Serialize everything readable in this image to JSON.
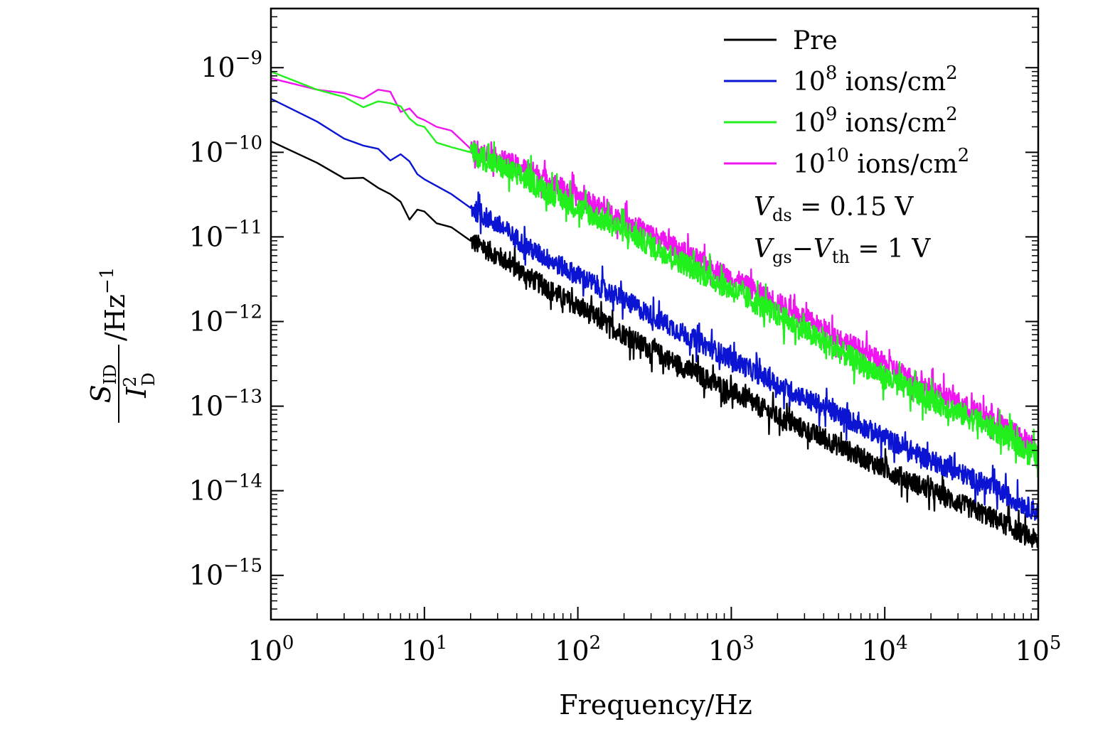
{
  "chart_data": {
    "type": "line",
    "xlabel": "Frequency/Hz",
    "ylabel": {
      "numerator_symbol": "S",
      "numerator_subscript": "ID",
      "denominator_symbol": "I",
      "denominator_superscript": "2",
      "denominator_subscript": "D",
      "unit": "/Hz",
      "unit_exponent": "−1"
    },
    "x_scale": "log",
    "y_scale": "log",
    "xlim": [
      1,
      100000
    ],
    "ylim": [
      3e-16,
      5e-09
    ],
    "x_ticks": [
      {
        "base": "10",
        "exp": "0",
        "value": 1
      },
      {
        "base": "10",
        "exp": "1",
        "value": 10
      },
      {
        "base": "10",
        "exp": "2",
        "value": 100
      },
      {
        "base": "10",
        "exp": "3",
        "value": 1000
      },
      {
        "base": "10",
        "exp": "4",
        "value": 10000
      },
      {
        "base": "10",
        "exp": "5",
        "value": 100000
      }
    ],
    "y_ticks": [
      {
        "base": "10",
        "exp": "−9",
        "value": 1e-09
      },
      {
        "base": "10",
        "exp": "−10",
        "value": 1e-10
      },
      {
        "base": "10",
        "exp": "−11",
        "value": 1e-11
      },
      {
        "base": "10",
        "exp": "−12",
        "value": 1e-12
      },
      {
        "base": "10",
        "exp": "−13",
        "value": 1e-13
      },
      {
        "base": "10",
        "exp": "−14",
        "value": 1e-14
      },
      {
        "base": "10",
        "exp": "−15",
        "value": 1e-15
      }
    ],
    "legend_position": "top-right",
    "series": [
      {
        "name": "Pre",
        "legend_base": "Pre",
        "legend_exp": "",
        "legend_rest": "",
        "color": "#000000",
        "x": [
          1,
          2,
          3,
          4,
          5,
          6,
          7,
          8,
          9,
          10,
          12,
          15,
          20,
          30,
          50,
          100,
          200,
          500,
          1000,
          2000,
          5000,
          10000,
          20000,
          50000,
          100000
        ],
        "y": [
          1.35e-10,
          7.5e-11,
          4.9e-11,
          5e-11,
          3.8e-11,
          3.2e-11,
          2.6e-11,
          1.6e-11,
          2.1e-11,
          2e-11,
          1.45e-11,
          1.3e-11,
          9e-12,
          6e-12,
          3.2e-12,
          1.5e-12,
          7e-13,
          2.8e-13,
          1.5e-13,
          7.5e-14,
          3.4e-14,
          1.8e-14,
          1e-14,
          4.8e-15,
          2.5e-15
        ],
        "noise": 0.12
      },
      {
        "name": "10^8 ions/cm^2",
        "legend_base": "10",
        "legend_exp": "8",
        "legend_rest": " ions/cm",
        "color": "#0a14d2",
        "x": [
          1,
          2,
          3,
          4,
          5,
          6,
          7,
          8,
          9,
          10,
          12,
          15,
          20,
          30,
          50,
          100,
          200,
          500,
          1000,
          2000,
          5000,
          10000,
          20000,
          50000,
          100000
        ],
        "y": [
          4.3e-10,
          2.3e-10,
          1.45e-10,
          1.2e-10,
          1.1e-10,
          8e-11,
          9.5e-11,
          7.8e-11,
          5.5e-11,
          4.8e-11,
          4e-11,
          3.2e-11,
          2.2e-11,
          1.4e-11,
          7e-12,
          3.5e-12,
          1.8e-12,
          7e-13,
          3.6e-13,
          1.8e-13,
          8e-14,
          4.2e-14,
          2.3e-14,
          1.1e-14,
          5.5e-15
        ],
        "noise": 0.12
      },
      {
        "name": "10^9 ions/cm^2",
        "legend_base": "10",
        "legend_exp": "9",
        "legend_rest": " ions/cm",
        "color": "#22f01c",
        "x": [
          1,
          2,
          3,
          4,
          5,
          6,
          7,
          8,
          9,
          10,
          12,
          15,
          20,
          30,
          50,
          100,
          200,
          500,
          1000,
          2000,
          5000,
          10000,
          20000,
          50000,
          100000
        ],
        "y": [
          9e-10,
          5.5e-10,
          4.5e-10,
          3.4e-10,
          4e-10,
          3.8e-10,
          3.5e-10,
          2.5e-10,
          2.1e-10,
          2e-10,
          1.3e-10,
          1.15e-10,
          1e-10,
          7e-11,
          4.5e-11,
          2.2e-11,
          1.2e-11,
          4.8e-12,
          2.4e-12,
          1.2e-12,
          4.5e-13,
          2.2e-13,
          1.2e-13,
          5.5e-14,
          2.5e-14
        ],
        "noise": 0.14
      },
      {
        "name": "10^10 ions/cm^2",
        "legend_base": "10",
        "legend_exp": "10",
        "legend_rest": " ions/cm",
        "color": "#f014f0",
        "x": [
          1,
          2,
          3,
          4,
          5,
          6,
          7,
          8,
          9,
          10,
          12,
          15,
          20,
          30,
          50,
          100,
          200,
          500,
          1000,
          2000,
          5000,
          10000,
          20000,
          50000,
          100000
        ],
        "y": [
          7.5e-10,
          5.5e-10,
          5e-10,
          4.3e-10,
          5.5e-10,
          5.2e-10,
          3e-10,
          3.3e-10,
          2.6e-10,
          2.4e-10,
          2e-10,
          1.8e-10,
          1.1e-10,
          8.5e-11,
          6e-11,
          3e-11,
          1.6e-11,
          6.5e-12,
          3.3e-12,
          1.7e-12,
          6.5e-13,
          3.2e-13,
          1.6e-13,
          7e-14,
          3.3e-14
        ],
        "noise": 0.12
      }
    ],
    "legend_superscript": "2",
    "annotations": [
      {
        "symbol": "V",
        "sub": "ds",
        "rest": " = 0.15 V"
      },
      {
        "symbol": "V",
        "sub": "gs",
        "mid": "−",
        "symbol2": "V",
        "sub2": "th",
        "rest": " = 1 V"
      }
    ]
  }
}
